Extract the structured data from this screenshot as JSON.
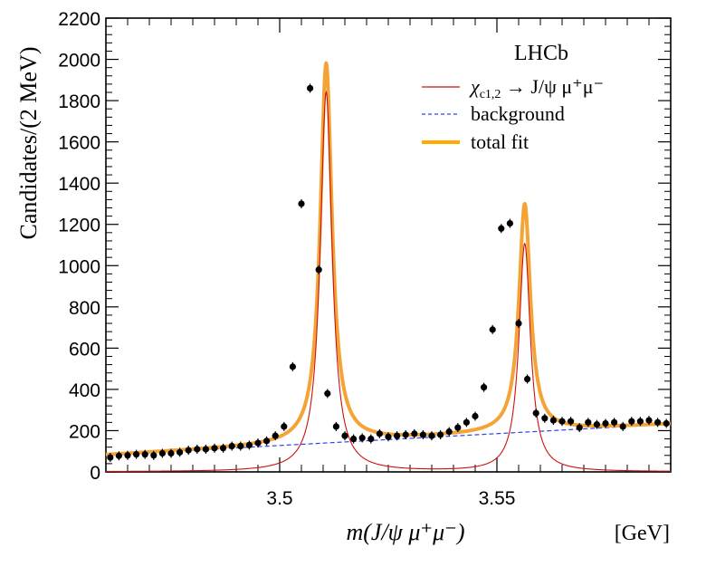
{
  "chart_data": {
    "type": "scatter",
    "experiment_label": "LHCb",
    "xlabel": "m(J/ψ μ⁺μ⁻)",
    "xunit": "[GeV]",
    "ylabel": "Candidates/(2 MeV)",
    "xlim": [
      3.46,
      3.59
    ],
    "ylim": [
      0,
      2200
    ],
    "x_ticks": [
      3.5,
      3.55
    ],
    "y_ticks": [
      0,
      200,
      400,
      600,
      800,
      1000,
      1200,
      1400,
      1600,
      1800,
      2000,
      2200
    ],
    "legend": {
      "position": "top-right",
      "entries": [
        {
          "key": "signal",
          "label_main": "χ",
          "label_sub": "c1,2",
          "label_rest": " → J/ψ μ⁺μ⁻",
          "color": "#cc1111",
          "style": "solid"
        },
        {
          "key": "background",
          "label": "background",
          "color": "#3344ee",
          "style": "dashed"
        },
        {
          "key": "total",
          "label": "total fit",
          "color": "#ffaa00",
          "style": "solid-thick"
        }
      ]
    },
    "colors": {
      "signal": "#cc1111",
      "background": "#3344ee",
      "total": "#f4a437",
      "data": "#000000"
    },
    "fit_model": {
      "background_linear": {
        "a": 82,
        "slope": 1150
      },
      "peaks": [
        {
          "mean": 3.5107,
          "width": 0.00165,
          "amplitude": 1840
        },
        {
          "mean": 3.5564,
          "width": 0.0016,
          "amplitude": 1105
        }
      ]
    },
    "points": {
      "x": [
        3.461,
        3.463,
        3.465,
        3.467,
        3.469,
        3.471,
        3.473,
        3.475,
        3.477,
        3.479,
        3.481,
        3.483,
        3.485,
        3.487,
        3.489,
        3.491,
        3.493,
        3.495,
        3.497,
        3.499,
        3.501,
        3.503,
        3.505,
        3.507,
        3.509,
        3.511,
        3.513,
        3.515,
        3.517,
        3.519,
        3.521,
        3.523,
        3.525,
        3.527,
        3.529,
        3.531,
        3.533,
        3.535,
        3.537,
        3.539,
        3.541,
        3.543,
        3.545,
        3.547,
        3.549,
        3.551,
        3.553,
        3.555,
        3.557,
        3.559,
        3.561,
        3.563,
        3.565,
        3.567,
        3.569,
        3.571,
        3.573,
        3.575,
        3.577,
        3.579,
        3.581,
        3.583,
        3.585,
        3.587,
        3.589
      ],
      "y": [
        70,
        78,
        80,
        85,
        85,
        80,
        90,
        90,
        95,
        105,
        110,
        110,
        115,
        115,
        125,
        125,
        130,
        140,
        150,
        175,
        220,
        510,
        1300,
        1860,
        980,
        380,
        220,
        175,
        160,
        165,
        160,
        185,
        170,
        175,
        180,
        185,
        180,
        175,
        180,
        195,
        215,
        240,
        270,
        410,
        690,
        1180,
        1205,
        720,
        450,
        285,
        260,
        250,
        245,
        245,
        215,
        240,
        230,
        235,
        240,
        220,
        245,
        245,
        250,
        240,
        235
      ]
    }
  }
}
